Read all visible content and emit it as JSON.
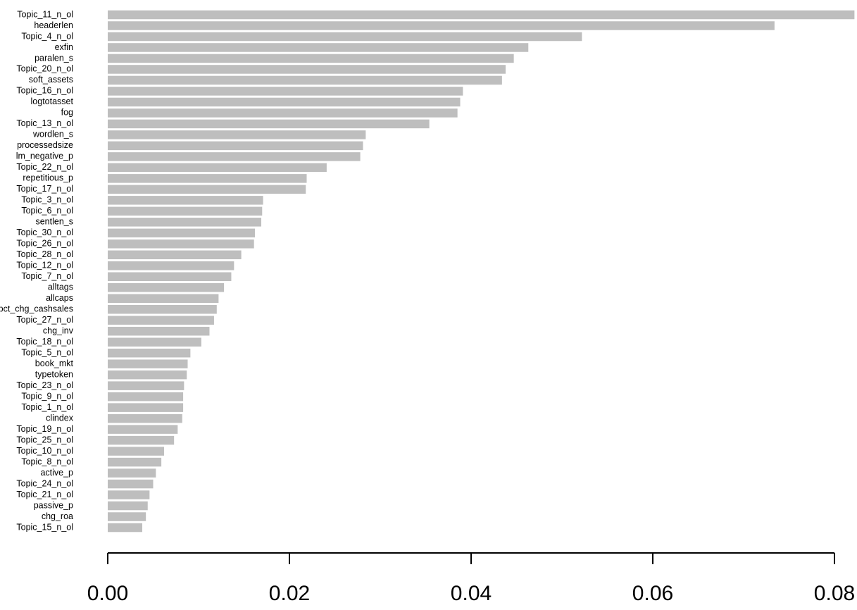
{
  "chart_data": {
    "type": "bar",
    "orientation": "horizontal",
    "color": "#bebebe",
    "categories": [
      "Topic_11_n_ol",
      "headerlen",
      "Topic_4_n_ol",
      "exfin",
      "paralen_s",
      "Topic_20_n_ol",
      "soft_assets",
      "Topic_16_n_ol",
      "logtotasset",
      "fog",
      "Topic_13_n_ol",
      "wordlen_s",
      "processedsize",
      "lm_negative_p",
      "Topic_22_n_ol",
      "repetitious_p",
      "Topic_17_n_ol",
      "Topic_3_n_ol",
      "Topic_6_n_ol",
      "sentlen_s",
      "Topic_30_n_ol",
      "Topic_26_n_ol",
      "Topic_28_n_ol",
      "Topic_12_n_ol",
      "Topic_7_n_ol",
      "alltags",
      "allcaps",
      "pct_chg_cashsales",
      "Topic_27_n_ol",
      "chg_inv",
      "Topic_18_n_ol",
      "Topic_5_n_ol",
      "book_mkt",
      "typetoken",
      "Topic_23_n_ol",
      "Topic_9_n_ol",
      "Topic_1_n_ol",
      "clindex",
      "Topic_19_n_ol",
      "Topic_25_n_ol",
      "Topic_10_n_ol",
      "Topic_8_n_ol",
      "active_p",
      "Topic_24_n_ol",
      "Topic_21_n_ol",
      "passive_p",
      "chg_roa",
      "Topic_15_n_ol"
    ],
    "values": [
      0.0822,
      0.0734,
      0.0522,
      0.0463,
      0.0447,
      0.0438,
      0.0434,
      0.0391,
      0.0388,
      0.0385,
      0.0354,
      0.0284,
      0.0281,
      0.0278,
      0.0241,
      0.0219,
      0.0218,
      0.0171,
      0.017,
      0.0169,
      0.0162,
      0.0161,
      0.0147,
      0.0139,
      0.0136,
      0.0128,
      0.0122,
      0.012,
      0.0117,
      0.0112,
      0.0103,
      0.0091,
      0.0088,
      0.0087,
      0.0084,
      0.0083,
      0.0083,
      0.0082,
      0.0077,
      0.0073,
      0.0062,
      0.0059,
      0.0053,
      0.005,
      0.0046,
      0.0044,
      0.0042,
      0.0038
    ],
    "xlim": [
      0,
      0.08
    ],
    "xticks": [
      {
        "value": 0,
        "label": "0.00"
      },
      {
        "value": 0.02,
        "label": "0.02"
      },
      {
        "value": 0.04,
        "label": "0.04"
      },
      {
        "value": 0.06,
        "label": "0.06"
      },
      {
        "value": 0.08,
        "label": "0.08"
      }
    ]
  }
}
